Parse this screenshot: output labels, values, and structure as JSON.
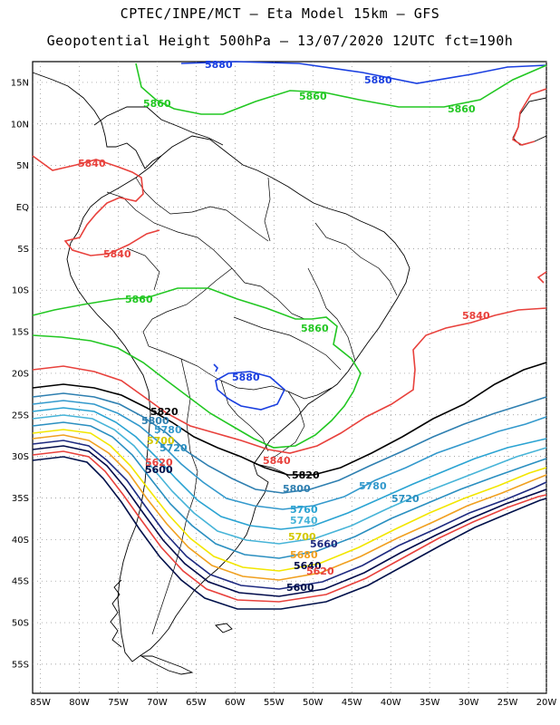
{
  "header": {
    "line1": "CPTEC/INPE/MCT –  Eta Model 15km – GFS",
    "line2": "Geopotential Height 500hPa – 13/07/2020 12UTC fct=190h"
  },
  "axes": {
    "latitude_ticks": [
      "15N",
      "10N",
      "5N",
      "EQ",
      "5S",
      "10S",
      "15S",
      "20S",
      "25S",
      "30S",
      "35S",
      "40S",
      "45S",
      "50S",
      "55S"
    ],
    "longitude_ticks": [
      "85W",
      "80W",
      "75W",
      "70W",
      "65W",
      "60W",
      "55W",
      "50W",
      "45W",
      "40W",
      "35W",
      "30W",
      "25W",
      "20W"
    ],
    "lat_range": [
      17.5,
      -58.5
    ],
    "lon_range": [
      -86,
      -20
    ]
  },
  "contours": [
    {
      "value": 5880,
      "color": "#1a3fe0"
    },
    {
      "value": 5860,
      "color": "#22c722"
    },
    {
      "value": 5840,
      "color": "#e8413c"
    },
    {
      "value": 5820,
      "color": "#000000"
    },
    {
      "value": 5800,
      "color": "#2e7fb0"
    },
    {
      "value": 5780,
      "color": "#3399cc"
    },
    {
      "value": 5760,
      "color": "#2aa3d2"
    },
    {
      "value": 5740,
      "color": "#47b4d8"
    },
    {
      "value": 5720,
      "color": "#2a8fc0"
    },
    {
      "value": 5700,
      "color": "#f2e600"
    },
    {
      "value": 5680,
      "color": "#f0a020"
    },
    {
      "value": 5660,
      "color": "#1e2a80"
    },
    {
      "value": 5640,
      "color": "#000a4a"
    },
    {
      "value": 5620,
      "color": "#e8413c"
    },
    {
      "value": 5600,
      "color": "#00104a"
    }
  ],
  "contour_labels": [
    {
      "text": "5880",
      "color": "#1a3fe0"
    },
    {
      "text": "5880",
      "color": "#1a3fe0"
    },
    {
      "text": "5880",
      "color": "#1a3fe0"
    },
    {
      "text": "5860",
      "color": "#22c722"
    },
    {
      "text": "5860",
      "color": "#22c722"
    },
    {
      "text": "5860",
      "color": "#22c722"
    },
    {
      "text": "5860",
      "color": "#22c722"
    },
    {
      "text": "5860",
      "color": "#22c722"
    },
    {
      "text": "5840",
      "color": "#e8413c"
    },
    {
      "text": "5840",
      "color": "#e8413c"
    },
    {
      "text": "5840",
      "color": "#e8413c"
    },
    {
      "text": "5840",
      "color": "#e8413c"
    },
    {
      "text": "5820",
      "color": "#000000"
    },
    {
      "text": "5820",
      "color": "#000000"
    },
    {
      "text": "5800",
      "color": "#2e7fb0"
    },
    {
      "text": "5800",
      "color": "#2e7fb0"
    },
    {
      "text": "5780",
      "color": "#3399cc"
    },
    {
      "text": "5780",
      "color": "#3399cc"
    },
    {
      "text": "5760",
      "color": "#2aa3d2"
    },
    {
      "text": "5740",
      "color": "#47b4d8"
    },
    {
      "text": "5720",
      "color": "#2a8fc0"
    },
    {
      "text": "5720",
      "color": "#2a8fc0"
    },
    {
      "text": "5700",
      "color": "#d4c800"
    },
    {
      "text": "5700",
      "color": "#d4c800"
    },
    {
      "text": "5680",
      "color": "#f0a020"
    },
    {
      "text": "5660",
      "color": "#1e2a80"
    },
    {
      "text": "5640",
      "color": "#000a4a"
    },
    {
      "text": "5620",
      "color": "#e8413c"
    },
    {
      "text": "5620",
      "color": "#e8413c"
    },
    {
      "text": "5600",
      "color": "#00104a"
    },
    {
      "text": "5600",
      "color": "#00104a"
    }
  ]
}
